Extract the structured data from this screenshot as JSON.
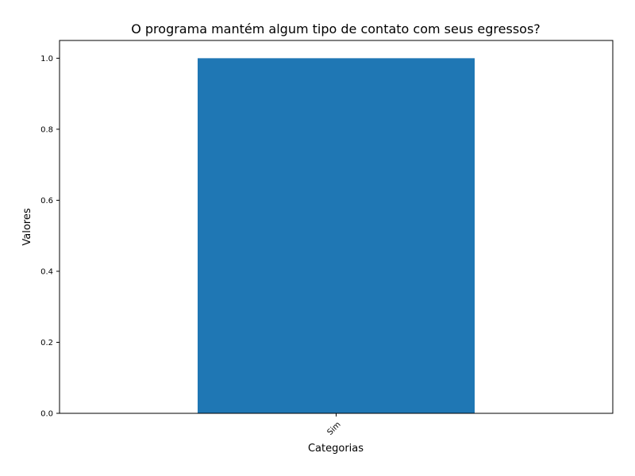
{
  "chart_data": {
    "type": "bar",
    "title": "O programa mantém algum tipo de contato com seus egressos?",
    "xlabel": "Categorias",
    "ylabel": "Valores",
    "categories": [
      "Sim"
    ],
    "values": [
      1
    ],
    "ylim": [
      0,
      1.05
    ],
    "yticks": [
      "0.0",
      "0.2",
      "0.4",
      "0.6",
      "0.8",
      "1.0"
    ],
    "bar_color": "#1f77b4",
    "grid": false,
    "legend": "none"
  }
}
